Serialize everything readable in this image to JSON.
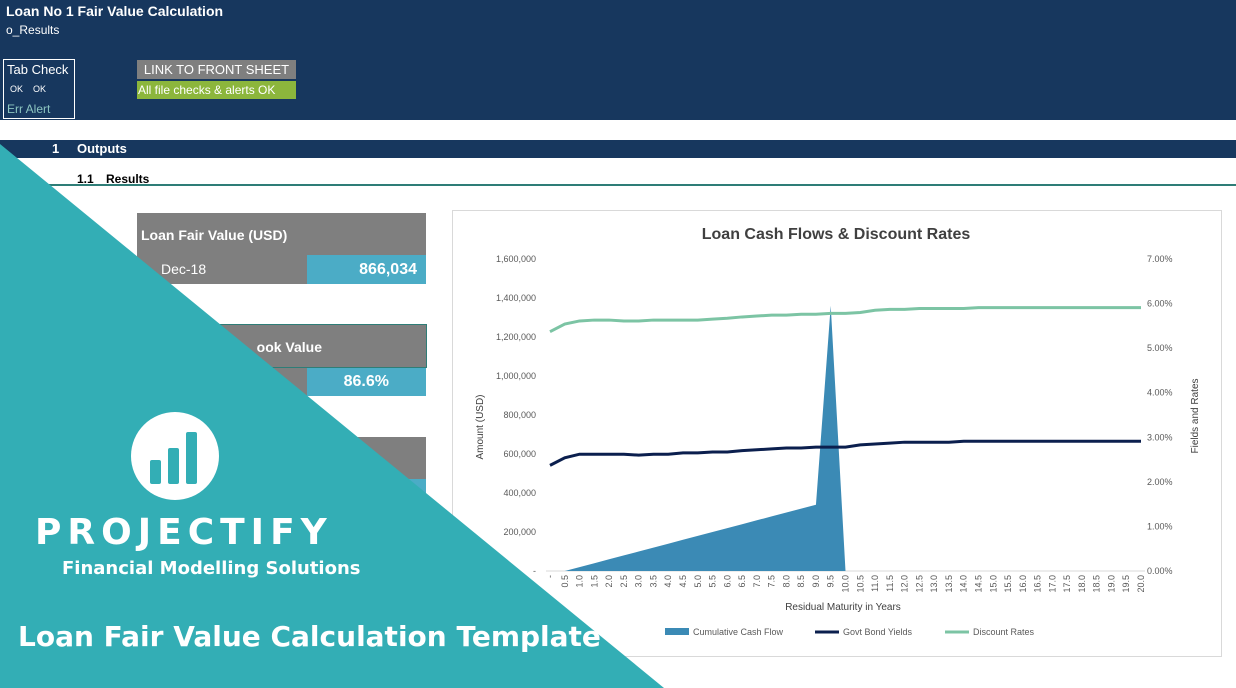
{
  "header": {
    "title": "Loan No 1 Fair Value Calculation",
    "subtitle": "o_Results",
    "tab_check": {
      "label": "Tab Check",
      "ok1": "OK",
      "ok2": "OK",
      "err_alert": "Err Alert"
    },
    "link_button": "LINK TO FRONT SHEET",
    "checks_status": "All file checks & alerts OK"
  },
  "section": {
    "number": "1",
    "title": "Outputs",
    "sub_number": "1.1",
    "sub_title": "Results"
  },
  "cards": [
    {
      "title": "Loan Fair Value (USD)",
      "label": "Dec-18",
      "value": "866,034"
    },
    {
      "title": "ook Value",
      "label": "",
      "value": "86.6%"
    }
  ],
  "chart_data": {
    "type": "area",
    "title": "Loan Cash Flows &  Discount Rates",
    "xlabel": "Residual Maturity in Years",
    "ylabel": "Amount (USD)",
    "y2label": "Fields and Rates",
    "ylim": [
      0,
      1600000
    ],
    "y_ticks": [
      "-",
      "200,000",
      "400,000",
      "600,000",
      "800,000",
      "1,000,000",
      "1,200,000",
      "1,400,000",
      "1,600,000"
    ],
    "y2lim": [
      0,
      0.07
    ],
    "y2_ticks": [
      "0.00%",
      "1.00%",
      "2.00%",
      "3.00%",
      "4.00%",
      "5.00%",
      "6.00%",
      "7.00%"
    ],
    "x": [
      "-",
      "0.5",
      "1.0",
      "1.5",
      "2.0",
      "2.5",
      "3.0",
      "3.5",
      "4.0",
      "4.5",
      "5.0",
      "5.5",
      "6.0",
      "6.5",
      "7.0",
      "7.5",
      "8.0",
      "8.5",
      "9.0",
      "9.5",
      "10.0",
      "10.5",
      "11.0",
      "11.5",
      "12.0",
      "12.5",
      "13.0",
      "13.5",
      "14.0",
      "14.5",
      "15.0",
      "15.5",
      "16.0",
      "16.5",
      "17.0",
      "17.5",
      "18.0",
      "18.5",
      "19.0",
      "19.5",
      "20.0"
    ],
    "legend_position": "bottom",
    "series": [
      {
        "name": "Cumulative Cash Flow",
        "axis": "left",
        "kind": "area",
        "color": "#3b8ab5",
        "values": [
          0,
          0,
          20000,
          40000,
          60000,
          80000,
          100000,
          120000,
          140000,
          160000,
          180000,
          200000,
          220000,
          240000,
          260000,
          280000,
          300000,
          320000,
          340000,
          1360000,
          0,
          null,
          null,
          null,
          null,
          null,
          null,
          null,
          null,
          null,
          null,
          null,
          null,
          null,
          null,
          null,
          null,
          null,
          null,
          null,
          null
        ]
      },
      {
        "name": "Govt Bond Yields",
        "axis": "right",
        "kind": "line",
        "color": "#0b1f4e",
        "values": [
          0.0237,
          0.0254,
          0.0262,
          0.0262,
          0.0262,
          0.0262,
          0.026,
          0.0262,
          0.0262,
          0.0265,
          0.0265,
          0.0267,
          0.0267,
          0.027,
          0.0272,
          0.0274,
          0.0276,
          0.0276,
          0.0278,
          0.0278,
          0.0278,
          0.0283,
          0.0285,
          0.0287,
          0.0289,
          0.0289,
          0.0289,
          0.0289,
          0.0291,
          0.0291,
          0.0291,
          0.0291,
          0.0291,
          0.0291,
          0.0291,
          0.0291,
          0.0291,
          0.0291,
          0.0291,
          0.0291,
          0.0291
        ]
      },
      {
        "name": "Discount Rates",
        "axis": "right",
        "kind": "line",
        "color": "#7cc4a4",
        "values": [
          0.0537,
          0.0554,
          0.0561,
          0.0563,
          0.0563,
          0.0561,
          0.0561,
          0.0563,
          0.0563,
          0.0563,
          0.0563,
          0.0565,
          0.0567,
          0.057,
          0.0572,
          0.0574,
          0.0574,
          0.0576,
          0.0576,
          0.0578,
          0.0578,
          0.058,
          0.0585,
          0.0587,
          0.0587,
          0.0589,
          0.0589,
          0.0589,
          0.0589,
          0.0591,
          0.0591,
          0.0591,
          0.0591,
          0.0591,
          0.0591,
          0.0591,
          0.0591,
          0.0591,
          0.0591,
          0.0591,
          0.0591
        ]
      }
    ]
  },
  "branding": {
    "logo_icon": "bar-chart-icon",
    "logo_name": "PROJECTIFY",
    "logo_tagline": "Financial Modelling Solutions",
    "banner_title": "Loan Fair Value Calculation Template",
    "banner_color": "#33aeb5"
  }
}
